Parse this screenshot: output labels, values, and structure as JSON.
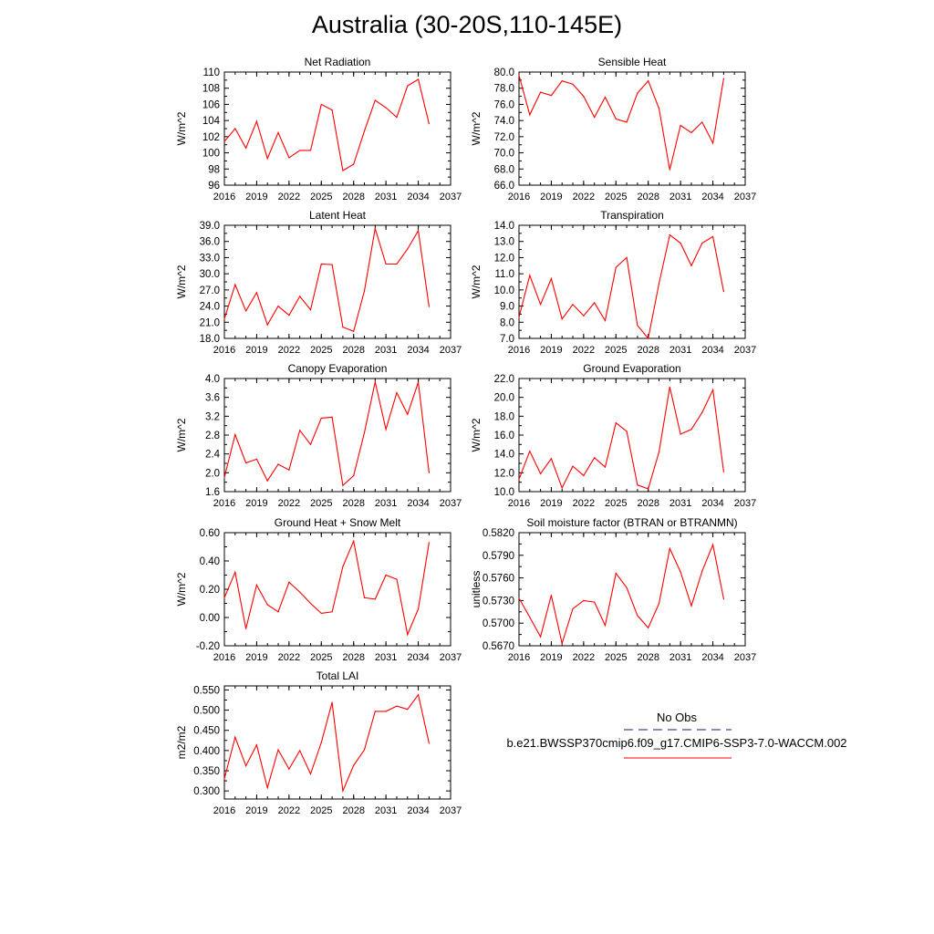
{
  "title": "Australia (30-20S,110-145E)",
  "legend": {
    "obs_label": "No Obs",
    "obs_color": "#1a1a8c",
    "model_label": "b.e21.BWSSP370cmip6.f09_g17.CMIP6-SSP3-7.0-WACCM.002",
    "model_color": "#ff0000"
  },
  "chart_data": [
    {
      "type": "line",
      "title": "Net Radiation",
      "ylabel": "W/m^2",
      "xlim": [
        2016,
        2037
      ],
      "ylim": [
        96,
        110
      ],
      "xticks": [
        "2016",
        "2019",
        "2022",
        "2025",
        "2028",
        "2031",
        "2034",
        "2037"
      ],
      "yticks": [
        "96",
        "98",
        "100",
        "102",
        "104",
        "106",
        "108",
        "110"
      ],
      "x": [
        2016,
        2017,
        2018,
        2019,
        2020,
        2021,
        2022,
        2023,
        2024,
        2025,
        2026,
        2027,
        2028,
        2029,
        2030,
        2031,
        2032,
        2033,
        2034,
        2035
      ],
      "series": [
        {
          "color": "#ff0000",
          "values": [
            101.4,
            103.0,
            100.6,
            103.9,
            99.3,
            102.5,
            99.4,
            100.3,
            100.3,
            106.0,
            105.3,
            97.8,
            98.6,
            102.7,
            106.5,
            105.6,
            104.4,
            108.3,
            109.1,
            103.6
          ]
        }
      ]
    },
    {
      "type": "line",
      "title": "Sensible Heat",
      "ylabel": "W/m^2",
      "xlim": [
        2016,
        2037
      ],
      "ylim": [
        66,
        80
      ],
      "xticks": [
        "2016",
        "2019",
        "2022",
        "2025",
        "2028",
        "2031",
        "2034",
        "2037"
      ],
      "yticks": [
        "66.0",
        "68.0",
        "70.0",
        "72.0",
        "74.0",
        "76.0",
        "78.0",
        "80.0"
      ],
      "x": [
        2016,
        2017,
        2018,
        2019,
        2020,
        2021,
        2022,
        2023,
        2024,
        2025,
        2026,
        2027,
        2028,
        2029,
        2030,
        2031,
        2032,
        2033,
        2034,
        2035
      ],
      "series": [
        {
          "color": "#ff0000",
          "values": [
            79.6,
            74.7,
            77.5,
            77.1,
            78.9,
            78.5,
            77.0,
            74.4,
            76.9,
            74.2,
            73.8,
            77.4,
            78.9,
            75.5,
            67.9,
            73.4,
            72.5,
            73.8,
            71.2,
            79.2
          ]
        }
      ]
    },
    {
      "type": "line",
      "title": "Latent Heat",
      "ylabel": "W/m^2",
      "xlim": [
        2016,
        2037
      ],
      "ylim": [
        18,
        39
      ],
      "xticks": [
        "2016",
        "2019",
        "2022",
        "2025",
        "2028",
        "2031",
        "2034",
        "2037"
      ],
      "yticks": [
        "18.0",
        "21.0",
        "24.0",
        "27.0",
        "30.0",
        "33.0",
        "36.0",
        "39.0"
      ],
      "x": [
        2016,
        2017,
        2018,
        2019,
        2020,
        2021,
        2022,
        2023,
        2024,
        2025,
        2026,
        2027,
        2028,
        2029,
        2030,
        2031,
        2032,
        2033,
        2034,
        2035
      ],
      "series": [
        {
          "color": "#ff0000",
          "values": [
            21.6,
            28.0,
            23.1,
            26.5,
            20.5,
            24.0,
            22.3,
            25.8,
            23.3,
            31.8,
            31.7,
            20.1,
            19.3,
            26.8,
            38.4,
            31.8,
            31.8,
            34.6,
            38.0,
            23.9
          ]
        }
      ]
    },
    {
      "type": "line",
      "title": "Transpiration",
      "ylabel": "W/m^2",
      "xlim": [
        2016,
        2037
      ],
      "ylim": [
        7,
        14
      ],
      "xticks": [
        "2016",
        "2019",
        "2022",
        "2025",
        "2028",
        "2031",
        "2034",
        "2037"
      ],
      "yticks": [
        "7.0",
        "8.0",
        "9.0",
        "10.0",
        "11.0",
        "12.0",
        "13.0",
        "14.0"
      ],
      "x": [
        2016,
        2017,
        2018,
        2019,
        2020,
        2021,
        2022,
        2023,
        2024,
        2025,
        2026,
        2027,
        2028,
        2029,
        2030,
        2031,
        2032,
        2033,
        2034,
        2035
      ],
      "series": [
        {
          "color": "#ff0000",
          "values": [
            8.3,
            10.9,
            9.1,
            10.7,
            8.2,
            9.1,
            8.4,
            9.2,
            8.1,
            11.4,
            12.0,
            7.8,
            7.0,
            10.4,
            13.4,
            12.9,
            11.5,
            12.9,
            13.3,
            9.9
          ]
        }
      ]
    },
    {
      "type": "line",
      "title": "Canopy Evaporation",
      "ylabel": "W/m^2",
      "xlim": [
        2016,
        2037
      ],
      "ylim": [
        1.6,
        4.0
      ],
      "xticks": [
        "2016",
        "2019",
        "2022",
        "2025",
        "2028",
        "2031",
        "2034",
        "2037"
      ],
      "yticks": [
        "1.6",
        "2.0",
        "2.4",
        "2.8",
        "3.2",
        "3.6",
        "4.0"
      ],
      "x": [
        2016,
        2017,
        2018,
        2019,
        2020,
        2021,
        2022,
        2023,
        2024,
        2025,
        2026,
        2027,
        2028,
        2029,
        2030,
        2031,
        2032,
        2033,
        2034,
        2035
      ],
      "series": [
        {
          "color": "#ff0000",
          "values": [
            1.9,
            2.81,
            2.21,
            2.29,
            1.83,
            2.18,
            2.06,
            2.9,
            2.6,
            3.16,
            3.18,
            1.73,
            1.94,
            2.85,
            3.93,
            2.92,
            3.7,
            3.24,
            3.92,
            2.0
          ]
        }
      ]
    },
    {
      "type": "line",
      "title": "Ground Evaporation",
      "ylabel": "W/m^2",
      "xlim": [
        2016,
        2037
      ],
      "ylim": [
        10,
        22
      ],
      "xticks": [
        "2016",
        "2019",
        "2022",
        "2025",
        "2028",
        "2031",
        "2034",
        "2037"
      ],
      "yticks": [
        "10.0",
        "12.0",
        "14.0",
        "16.0",
        "18.0",
        "20.0",
        "22.0"
      ],
      "x": [
        2016,
        2017,
        2018,
        2019,
        2020,
        2021,
        2022,
        2023,
        2024,
        2025,
        2026,
        2027,
        2028,
        2029,
        2030,
        2031,
        2032,
        2033,
        2034,
        2035
      ],
      "series": [
        {
          "color": "#ff0000",
          "values": [
            11.3,
            14.3,
            11.9,
            13.5,
            10.4,
            12.7,
            11.7,
            13.6,
            12.6,
            17.3,
            16.4,
            10.7,
            10.3,
            14.2,
            21.1,
            16.1,
            16.6,
            18.4,
            20.8,
            12.1
          ]
        }
      ]
    },
    {
      "type": "line",
      "title": "Ground Heat + Snow Melt",
      "ylabel": "W/m^2",
      "xlim": [
        2016,
        2037
      ],
      "ylim": [
        -0.2,
        0.6
      ],
      "xticks": [
        "2016",
        "2019",
        "2022",
        "2025",
        "2028",
        "2031",
        "2034",
        "2037"
      ],
      "yticks": [
        "-0.20",
        "0.00",
        "0.20",
        "0.40",
        "0.60"
      ],
      "x": [
        2016,
        2017,
        2018,
        2019,
        2020,
        2021,
        2022,
        2023,
        2024,
        2025,
        2026,
        2027,
        2028,
        2029,
        2030,
        2031,
        2032,
        2033,
        2034,
        2035
      ],
      "series": [
        {
          "color": "#ff0000",
          "values": [
            0.14,
            0.32,
            -0.08,
            0.23,
            0.09,
            0.04,
            0.25,
            0.18,
            0.1,
            0.03,
            0.04,
            0.36,
            0.54,
            0.14,
            0.13,
            0.3,
            0.27,
            -0.12,
            0.06,
            0.53
          ]
        }
      ]
    },
    {
      "type": "line",
      "title": "Soil moisture factor (BTRAN or BTRANMN)",
      "ylabel": "unitless",
      "xlim": [
        2016,
        2037
      ],
      "ylim": [
        0.567,
        0.582
      ],
      "xticks": [
        "2016",
        "2019",
        "2022",
        "2025",
        "2028",
        "2031",
        "2034",
        "2037"
      ],
      "yticks": [
        "0.5670",
        "0.5700",
        "0.5730",
        "0.5760",
        "0.5790",
        "0.5820"
      ],
      "x": [
        2016,
        2017,
        2018,
        2019,
        2020,
        2021,
        2022,
        2023,
        2024,
        2025,
        2026,
        2027,
        2028,
        2029,
        2030,
        2031,
        2032,
        2033,
        2034,
        2035
      ],
      "series": [
        {
          "color": "#ff0000",
          "values": [
            0.5733,
            0.5708,
            0.5682,
            0.5737,
            0.5673,
            0.5719,
            0.573,
            0.5728,
            0.5697,
            0.5766,
            0.5747,
            0.571,
            0.5694,
            0.5726,
            0.5799,
            0.5768,
            0.5723,
            0.5769,
            0.5804,
            0.5732
          ]
        }
      ]
    },
    {
      "type": "line",
      "title": "Total LAI",
      "ylabel": "m2/m2",
      "xlim": [
        2016,
        2037
      ],
      "ylim": [
        0.28,
        0.56
      ],
      "xticks": [
        "2016",
        "2019",
        "2022",
        "2025",
        "2028",
        "2031",
        "2034",
        "2037"
      ],
      "yticks": [
        "0.300",
        "0.350",
        "0.400",
        "0.450",
        "0.500",
        "0.550"
      ],
      "x": [
        2016,
        2017,
        2018,
        2019,
        2020,
        2021,
        2022,
        2023,
        2024,
        2025,
        2026,
        2027,
        2028,
        2029,
        2030,
        2031,
        2032,
        2033,
        2034,
        2035
      ],
      "series": [
        {
          "color": "#ff0000",
          "values": [
            0.33,
            0.433,
            0.362,
            0.414,
            0.308,
            0.402,
            0.354,
            0.4,
            0.342,
            0.42,
            0.519,
            0.3,
            0.363,
            0.402,
            0.497,
            0.497,
            0.51,
            0.502,
            0.538,
            0.418
          ]
        }
      ]
    }
  ]
}
